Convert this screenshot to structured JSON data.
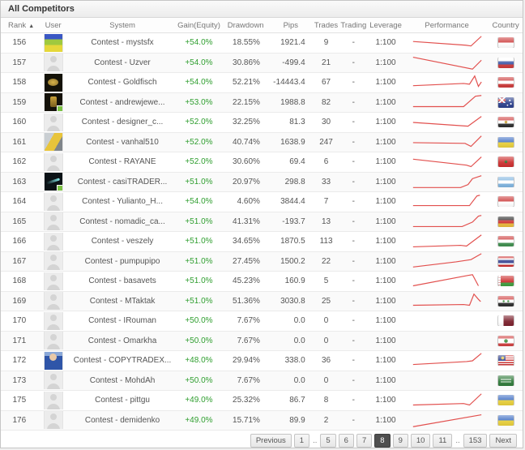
{
  "title": "All Competitors",
  "sort_icon": "▲",
  "columns": [
    "Rank",
    "User",
    "System",
    "Gain(Equity)",
    "Drawdown",
    "Pips",
    "Trades",
    "Trading",
    "Leverage",
    "Performance",
    "Country"
  ],
  "colors": {
    "gain_green": "#2f9e2f",
    "spark_red": "#e2504e",
    "active_page_bg": "#4f4f4f"
  },
  "rows": [
    {
      "rank": "156",
      "system": "Contest - mystsfx",
      "gain": "+54.0%",
      "drawdown": "18.55%",
      "pips": "1921.4",
      "trades": "9",
      "trading": "-",
      "leverage": "1:100",
      "country": "indonesia",
      "avatar": "mystfx",
      "status_dot": false,
      "spark": [
        [
          4,
          10
        ],
        [
          75,
          15
        ],
        [
          82,
          16
        ],
        [
          96,
          3
        ]
      ]
    },
    {
      "rank": "157",
      "system": "Contest - Uzver",
      "gain": "+54.0%",
      "drawdown": "30.86%",
      "pips": "-499.4",
      "trades": "21",
      "trading": "-",
      "leverage": "1:100",
      "country": "russia",
      "avatar": "silhouette",
      "status_dot": false,
      "spark": [
        [
          4,
          5
        ],
        [
          84,
          21
        ],
        [
          96,
          9
        ]
      ]
    },
    {
      "rank": "158",
      "system": "Contest - Goldfisch",
      "gain": "+54.0%",
      "drawdown": "52.21%",
      "pips": "-14443.4",
      "trades": "67",
      "trading": "-",
      "leverage": "1:100",
      "country": "austria",
      "avatar": "goldfish",
      "status_dot": false,
      "spark": [
        [
          4,
          16
        ],
        [
          72,
          13
        ],
        [
          80,
          14
        ],
        [
          87,
          3
        ],
        [
          92,
          17
        ],
        [
          96,
          11
        ]
      ]
    },
    {
      "rank": "159",
      "system": "Contest - andrewjewe...",
      "gain": "+53.0%",
      "drawdown": "22.15%",
      "pips": "1988.8",
      "trades": "82",
      "trading": "-",
      "leverage": "1:100",
      "country": "australia",
      "avatar": "goldfigure",
      "status_dot": true,
      "spark": [
        [
          4,
          18
        ],
        [
          72,
          18
        ],
        [
          88,
          4
        ],
        [
          96,
          3
        ]
      ]
    },
    {
      "rank": "160",
      "system": "Contest - designer_c...",
      "gain": "+52.0%",
      "drawdown": "32.25%",
      "pips": "81.3",
      "trades": "30",
      "trading": "-",
      "leverage": "1:100",
      "country": "egypt",
      "avatar": "silhouette",
      "status_dot": false,
      "spark": [
        [
          4,
          12
        ],
        [
          78,
          17
        ],
        [
          96,
          4
        ]
      ]
    },
    {
      "rank": "161",
      "system": "Contest - vanhal510",
      "gain": "+52.0%",
      "drawdown": "40.74%",
      "pips": "1638.9",
      "trades": "247",
      "trading": "-",
      "leverage": "1:100",
      "country": "ukraine",
      "avatar": "forklift",
      "status_dot": false,
      "spark": [
        [
          4,
          13
        ],
        [
          74,
          14
        ],
        [
          82,
          18
        ],
        [
          96,
          4
        ]
      ]
    },
    {
      "rank": "162",
      "system": "Contest - RAYANE",
      "gain": "+52.0%",
      "drawdown": "30.60%",
      "pips": "69.4",
      "trades": "6",
      "trading": "-",
      "leverage": "1:100",
      "country": "morocco",
      "avatar": "silhouette",
      "status_dot": false,
      "spark": [
        [
          4,
          8
        ],
        [
          76,
          16
        ],
        [
          82,
          18
        ],
        [
          96,
          5
        ]
      ]
    },
    {
      "rank": "163",
      "system": "Contest - casiTRADER...",
      "gain": "+51.0%",
      "drawdown": "20.97%",
      "pips": "298.8",
      "trades": "33",
      "trading": "-",
      "leverage": "1:100",
      "country": "argentina",
      "avatar": "comet",
      "status_dot": true,
      "spark": [
        [
          4,
          20
        ],
        [
          68,
          20
        ],
        [
          78,
          16
        ],
        [
          84,
          8
        ],
        [
          96,
          4
        ]
      ]
    },
    {
      "rank": "164",
      "system": "Contest - Yulianto_H...",
      "gain": "+54.0%",
      "drawdown": "4.60%",
      "pips": "3844.4",
      "trades": "7",
      "trading": "-",
      "leverage": "1:100",
      "country": "indonesia",
      "avatar": "silhouette",
      "status_dot": false,
      "spark": [
        [
          4,
          17
        ],
        [
          80,
          17
        ],
        [
          90,
          4
        ],
        [
          94,
          3
        ]
      ]
    },
    {
      "rank": "165",
      "system": "Contest - nomadic_ca...",
      "gain": "+51.0%",
      "drawdown": "41.31%",
      "pips": "-193.7",
      "trades": "13",
      "trading": "-",
      "leverage": "1:100",
      "country": "germany",
      "avatar": "silhouette",
      "status_dot": false,
      "spark": [
        [
          4,
          19
        ],
        [
          70,
          19
        ],
        [
          84,
          13
        ],
        [
          92,
          5
        ],
        [
          96,
          4
        ]
      ]
    },
    {
      "rank": "166",
      "system": "Contest - veszely",
      "gain": "+51.0%",
      "drawdown": "34.65%",
      "pips": "1870.5",
      "trades": "113",
      "trading": "-",
      "leverage": "1:100",
      "country": "hungary",
      "avatar": "silhouette",
      "status_dot": false,
      "spark": [
        [
          4,
          19
        ],
        [
          68,
          17
        ],
        [
          76,
          18
        ],
        [
          96,
          3
        ]
      ]
    },
    {
      "rank": "167",
      "system": "Contest - pumpupipo",
      "gain": "+51.0%",
      "drawdown": "27.45%",
      "pips": "1500.2",
      "trades": "22",
      "trading": "-",
      "leverage": "1:100",
      "country": "thailand",
      "avatar": "silhouette",
      "status_dot": false,
      "spark": [
        [
          4,
          20
        ],
        [
          62,
          13
        ],
        [
          82,
          10
        ],
        [
          96,
          2
        ]
      ]
    },
    {
      "rank": "168",
      "system": "Contest - basavets",
      "gain": "+51.0%",
      "drawdown": "45.23%",
      "pips": "160.9",
      "trades": "5",
      "trading": "-",
      "leverage": "1:100",
      "country": "belarus",
      "avatar": "silhouette",
      "status_dot": false,
      "spark": [
        [
          4,
          18
        ],
        [
          78,
          4
        ],
        [
          84,
          3
        ],
        [
          92,
          18
        ]
      ]
    },
    {
      "rank": "169",
      "system": "Contest - MTaktak",
      "gain": "+51.0%",
      "drawdown": "51.36%",
      "pips": "3030.8",
      "trades": "25",
      "trading": "-",
      "leverage": "1:100",
      "country": "syria",
      "avatar": "silhouette",
      "status_dot": false,
      "spark": [
        [
          4,
          18
        ],
        [
          72,
          17
        ],
        [
          80,
          18
        ],
        [
          86,
          3
        ],
        [
          92,
          10
        ],
        [
          95,
          13
        ]
      ]
    },
    {
      "rank": "170",
      "system": "Contest - IRouman",
      "gain": "+50.0%",
      "drawdown": "7.67%",
      "pips": "0.0",
      "trades": "0",
      "trading": "-",
      "leverage": "1:100",
      "country": "qatar",
      "avatar": "silhouette",
      "status_dot": false,
      "spark": []
    },
    {
      "rank": "171",
      "system": "Contest - Omarkha",
      "gain": "+50.0%",
      "drawdown": "7.67%",
      "pips": "0.0",
      "trades": "0",
      "trading": "-",
      "leverage": "1:100",
      "country": "lebanon",
      "avatar": "silhouette",
      "status_dot": false,
      "spark": []
    },
    {
      "rank": "172",
      "system": "Contest - COPYTRADEX...",
      "gain": "+48.0%",
      "drawdown": "29.94%",
      "pips": "338.0",
      "trades": "36",
      "trading": "-",
      "leverage": "1:100",
      "country": "malaysia",
      "avatar": "person",
      "status_dot": false,
      "spark": [
        [
          4,
          17
        ],
        [
          76,
          13
        ],
        [
          84,
          12
        ],
        [
          96,
          2
        ]
      ]
    },
    {
      "rank": "173",
      "system": "Contest - MohdAh",
      "gain": "+50.0%",
      "drawdown": "7.67%",
      "pips": "0.0",
      "trades": "0",
      "trading": "-",
      "leverage": "1:100",
      "country": "saudi-arabia",
      "avatar": "silhouette",
      "status_dot": false,
      "spark": []
    },
    {
      "rank": "175",
      "system": "Contest - pittgu",
      "gain": "+49.0%",
      "drawdown": "25.32%",
      "pips": "86.7",
      "trades": "8",
      "trading": "-",
      "leverage": "1:100",
      "country": "ukraine",
      "avatar": "silhouette",
      "status_dot": false,
      "spark": [
        [
          4,
          18
        ],
        [
          72,
          16
        ],
        [
          80,
          18
        ],
        [
          96,
          3
        ]
      ]
    },
    {
      "rank": "176",
      "system": "Contest - demidenko",
      "gain": "+49.0%",
      "drawdown": "15.71%",
      "pips": "89.9",
      "trades": "2",
      "trading": "-",
      "leverage": "1:100",
      "country": "ukraine",
      "avatar": "silhouette",
      "status_dot": false,
      "spark": [
        [
          4,
          21
        ],
        [
          96,
          5
        ]
      ]
    }
  ],
  "pagination": {
    "previous_label": "Previous",
    "next_label": "Next",
    "items": [
      {
        "label": "1",
        "active": false,
        "gap": false
      },
      {
        "label": "..",
        "active": false,
        "gap": true
      },
      {
        "label": "5",
        "active": false,
        "gap": false
      },
      {
        "label": "6",
        "active": false,
        "gap": false
      },
      {
        "label": "7",
        "active": false,
        "gap": false
      },
      {
        "label": "8",
        "active": true,
        "gap": false
      },
      {
        "label": "9",
        "active": false,
        "gap": false
      },
      {
        "label": "10",
        "active": false,
        "gap": false
      },
      {
        "label": "11",
        "active": false,
        "gap": false
      },
      {
        "label": "..",
        "active": false,
        "gap": true
      },
      {
        "label": "153",
        "active": false,
        "gap": false
      }
    ]
  }
}
